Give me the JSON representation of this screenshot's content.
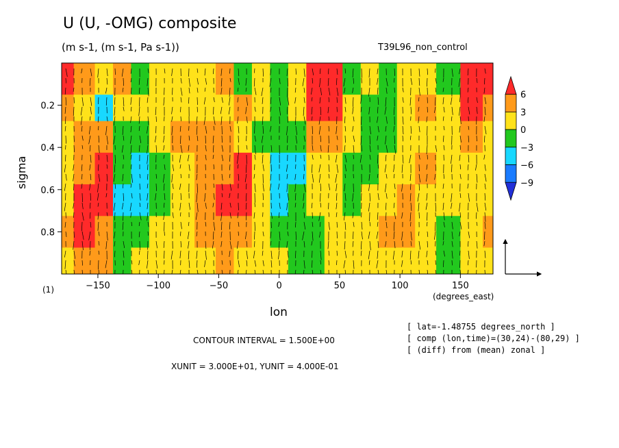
{
  "chart_data": {
    "type": "heatmap",
    "title": "U (U, -OMG) composite",
    "units": "(m s-1, (m s-1, Pa s-1))",
    "run_id": "T39L96_non_control",
    "xlabel": "lon",
    "ylabel": "sigma",
    "x_units_label": "(degrees_east)",
    "panel_label": "(1)",
    "xlim": [
      -180,
      177
    ],
    "ylim": [
      1.0,
      0.0
    ],
    "x_ticks": [
      -150,
      -100,
      -50,
      0,
      50,
      100,
      150
    ],
    "x_tick_labels": [
      "−150",
      "−100",
      "−50",
      "0",
      "50",
      "100",
      "150"
    ],
    "y_ticks": [
      0.2,
      0.4,
      0.6,
      0.8
    ],
    "y_tick_labels": [
      "0.2",
      "0.4",
      "0.6",
      "0.8"
    ],
    "colorbar": {
      "labels": [
        "6",
        "3",
        "0",
        "−3",
        "−6",
        "−9"
      ],
      "levels": [
        6,
        3,
        0,
        -3,
        -6,
        -9
      ],
      "colors": [
        "#ff2a2a",
        "#ff9a1a",
        "#ffe21a",
        "#22c81e",
        "#18d8ff",
        "#1a7cff",
        "#2230d8"
      ]
    },
    "field": {
      "lon": [
        -180,
        -160,
        -145,
        -130,
        -115,
        -100,
        -80,
        -60,
        -45,
        -30,
        -15,
        0,
        15,
        30,
        45,
        60,
        75,
        90,
        105,
        120,
        140,
        160,
        177
      ],
      "sigma": [
        0.1,
        0.2,
        0.35,
        0.5,
        0.65,
        0.8,
        0.95
      ],
      "values": [
        [
          6,
          3,
          0,
          3,
          -3,
          0,
          0,
          0,
          3,
          -3,
          0,
          -3,
          0,
          6,
          6,
          -3,
          0,
          -3,
          0,
          0,
          -3,
          6,
          6
        ],
        [
          3,
          0,
          -6,
          0,
          0,
          0,
          0,
          0,
          0,
          3,
          0,
          -3,
          0,
          6,
          6,
          0,
          -3,
          -3,
          0,
          3,
          0,
          6,
          3
        ],
        [
          0,
          3,
          3,
          -3,
          -3,
          0,
          3,
          3,
          3,
          0,
          -3,
          -3,
          -3,
          3,
          3,
          0,
          -3,
          -3,
          0,
          0,
          0,
          3,
          0
        ],
        [
          0,
          3,
          6,
          -3,
          -6,
          -3,
          0,
          3,
          3,
          6,
          0,
          -6,
          -6,
          0,
          0,
          -3,
          -3,
          0,
          0,
          3,
          0,
          0,
          0
        ],
        [
          0,
          6,
          6,
          -6,
          -6,
          -3,
          0,
          3,
          6,
          6,
          0,
          -6,
          -3,
          0,
          0,
          -3,
          0,
          0,
          3,
          0,
          0,
          0,
          0
        ],
        [
          3,
          6,
          3,
          -3,
          -3,
          0,
          0,
          3,
          3,
          3,
          0,
          -3,
          -3,
          -3,
          0,
          0,
          0,
          3,
          3,
          0,
          -3,
          0,
          3
        ],
        [
          0,
          3,
          3,
          -3,
          0,
          0,
          0,
          0,
          3,
          0,
          0,
          0,
          -3,
          -3,
          0,
          0,
          0,
          0,
          0,
          0,
          -3,
          0,
          0
        ]
      ]
    },
    "vectors": {
      "xunit": "3.000E+01",
      "yunit": "4.000E-01"
    },
    "contour_interval": "1.500E+00"
  },
  "annotations": {
    "contour_interval": "CONTOUR INTERVAL = 1.500E+00",
    "units_scale": "XUNIT = 3.000E+01, YUNIT = 4.000E-01",
    "lat": "[ lat=-1.48755 degrees_north ]",
    "comp": "[ comp (lon,time)=(30,24)-(80,29) ]",
    "diff": "[ (diff) from (mean) zonal ]"
  }
}
